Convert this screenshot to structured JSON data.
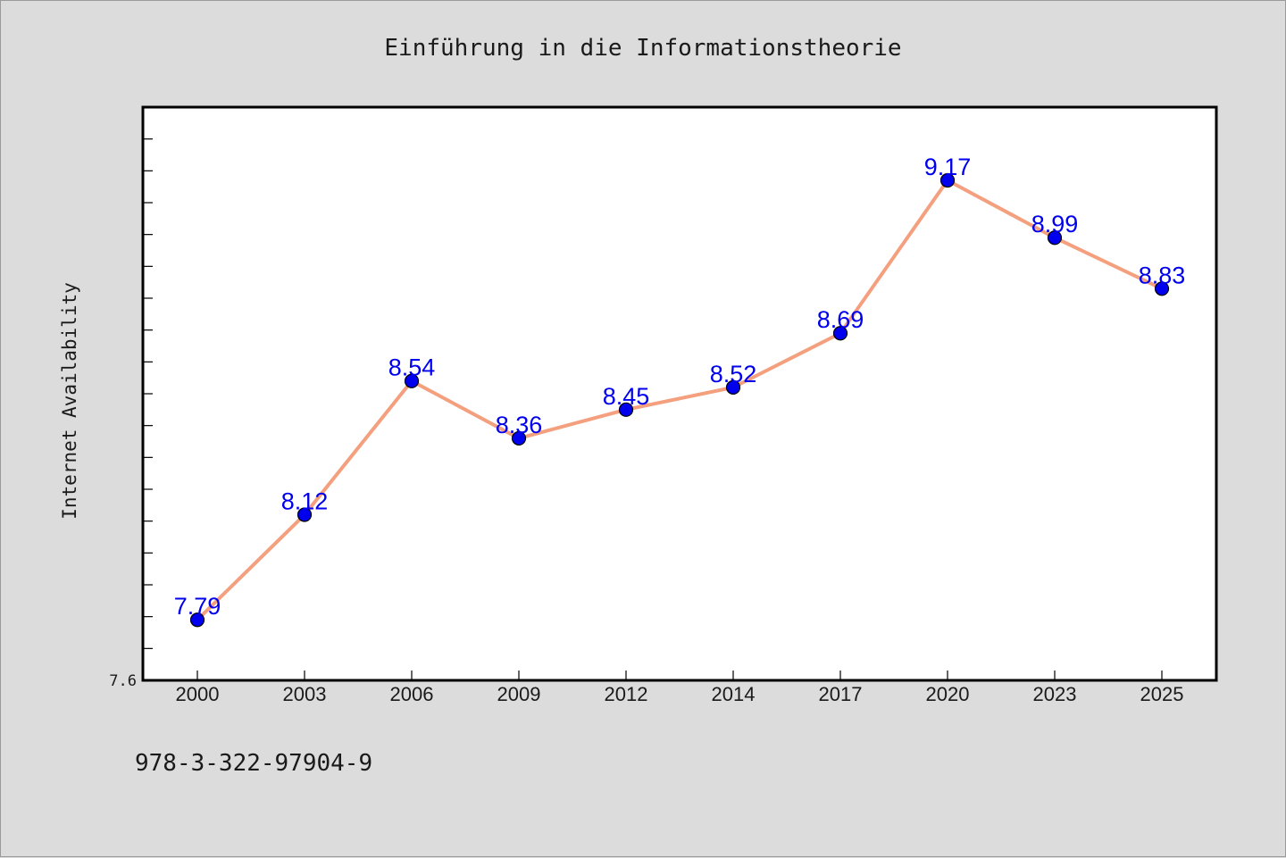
{
  "chart_data": {
    "type": "line",
    "title": "Einführung in die Informationstheorie",
    "ylabel": "Internet Availability",
    "xlabel": "",
    "x": [
      "2000",
      "2003",
      "2006",
      "2009",
      "2012",
      "2014",
      "2017",
      "2020",
      "2023",
      "2025"
    ],
    "series": [
      {
        "values": [
          7.79,
          8.12,
          8.54,
          8.36,
          8.45,
          8.52,
          8.69,
          9.17,
          8.99,
          8.83
        ]
      }
    ],
    "ylim": [
      7.6,
      9.4
    ],
    "yticks_labeled": [
      "7.6"
    ],
    "ytick_step": 0.1,
    "grid": false,
    "legend": "none",
    "colors": {
      "line": "#f4a07f",
      "marker": "#0000ee",
      "label": "#0000ee"
    }
  },
  "footer": {
    "isbn": "978-3-322-97904-9"
  }
}
